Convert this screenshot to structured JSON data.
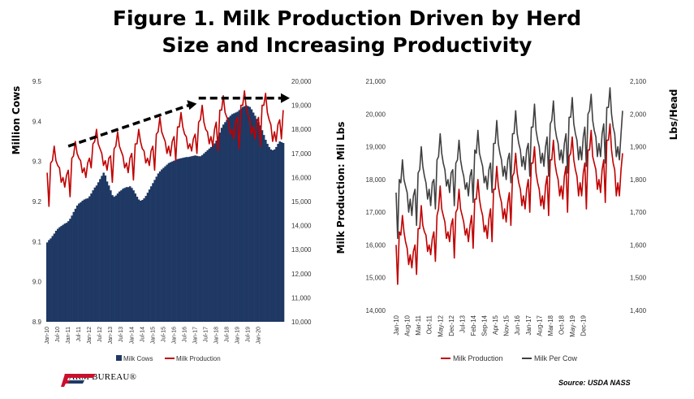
{
  "title_line1": "Figure 1. Milk Production Driven by Herd",
  "title_line2": "Size and Increasing Productivity",
  "source": "Source:  USDA NASS",
  "logo": {
    "text": "FARM BUREAU®"
  },
  "colors": {
    "navy": "#1f3864",
    "red": "#c00000",
    "gray": "#404040",
    "logo_red": "#c8102e"
  },
  "chart_data": [
    {
      "type": "bar",
      "subtype": "bar + line, dual axis",
      "y_left_label": "Million Cows",
      "y_left_lim": [
        8.9,
        9.5
      ],
      "y_left_ticks": [
        "9.5",
        "9.4",
        "9.3",
        "9.2",
        "9.1",
        "9.0",
        "8.9"
      ],
      "y_right_lim": [
        10000,
        20000
      ],
      "y_right_ticks": [
        "20,000",
        "19,000",
        "18,000",
        "17,000",
        "16,000",
        "15,000",
        "14,000",
        "13,000",
        "12,000",
        "11,000",
        "10,000"
      ],
      "x_ticks": [
        "Jan-10",
        "Jul-10",
        "Jan-11",
        "Jul-11",
        "Jan-12",
        "Jul-12",
        "Jan-13",
        "Jul-13",
        "Jan-14",
        "Jul-14",
        "Jan-15",
        "Jul-15",
        "Jan-16",
        "Jul-16",
        "Jan-17",
        "Jul-17",
        "Jan-18",
        "Jul-18",
        "Jan-19",
        "Jul-19",
        "Jan-20"
      ],
      "legend": [
        "Milk Cows",
        "Milk Production"
      ],
      "legend_position": "bottom",
      "annotations": [
        "dashed trend arrow rising Jan-11 to Jan-17",
        "dashed flat arrow Jan-17 to Jan-20"
      ],
      "series": [
        {
          "name": "Milk Cows",
          "type": "bar",
          "axis": "left",
          "x_start": "Jan-10",
          "frequency": "monthly",
          "values": [
            9.098,
            9.104,
            9.108,
            9.114,
            9.12,
            9.127,
            9.132,
            9.136,
            9.139,
            9.142,
            9.145,
            9.147,
            9.151,
            9.157,
            9.165,
            9.174,
            9.182,
            9.19,
            9.195,
            9.198,
            9.202,
            9.205,
            9.207,
            9.208,
            9.213,
            9.22,
            9.228,
            9.235,
            9.24,
            9.248,
            9.256,
            9.264,
            9.272,
            9.265,
            9.25,
            9.24,
            9.228,
            9.216,
            9.212,
            9.215,
            9.22,
            9.225,
            9.228,
            9.232,
            9.234,
            9.236,
            9.236,
            9.238,
            9.234,
            9.228,
            9.22,
            9.212,
            9.205,
            9.202,
            9.204,
            9.208,
            9.214,
            9.222,
            9.23,
            9.238,
            9.246,
            9.254,
            9.262,
            9.27,
            9.275,
            9.28,
            9.284,
            9.288,
            9.292,
            9.296,
            9.298,
            9.3,
            9.302,
            9.304,
            9.306,
            9.307,
            9.308,
            9.309,
            9.31,
            9.311,
            9.311,
            9.312,
            9.313,
            9.314,
            9.315,
            9.314,
            9.313,
            9.313,
            9.316,
            9.32,
            9.324,
            9.328,
            9.332,
            9.336,
            9.34,
            9.345,
            9.352,
            9.362,
            9.372,
            9.384,
            9.392,
            9.398,
            9.404,
            9.41,
            9.414,
            9.418,
            9.42,
            9.422,
            9.424,
            9.428,
            9.432,
            9.436,
            9.438,
            9.44,
            9.438,
            9.436,
            9.43,
            9.422,
            9.414,
            9.406,
            9.398,
            9.39,
            9.378,
            9.366,
            9.354,
            9.344,
            9.336,
            9.33,
            9.328,
            9.33,
            9.336,
            9.344,
            9.35,
            9.348,
            9.346
          ]
        },
        {
          "name": "Milk Production",
          "type": "line",
          "axis": "right",
          "x_start": "Jan-10",
          "frequency": "monthly",
          "values": [
            16200,
            14800,
            16600,
            16700,
            17300,
            16700,
            16500,
            16400,
            15800,
            16000,
            15600,
            16100,
            16300,
            15200,
            16800,
            16900,
            17500,
            17000,
            16800,
            16700,
            16200,
            16400,
            16000,
            16600,
            16800,
            16400,
            17400,
            17500,
            18000,
            17400,
            17200,
            17000,
            16500,
            16700,
            16300,
            16800,
            16900,
            15800,
            17200,
            17300,
            17900,
            17300,
            17100,
            16900,
            16400,
            16600,
            16200,
            16800,
            17000,
            15900,
            17400,
            17400,
            18000,
            17500,
            17200,
            17100,
            16600,
            16800,
            16500,
            17100,
            17300,
            16300,
            17800,
            17900,
            18500,
            17900,
            17700,
            17500,
            17000,
            17300,
            16900,
            17500,
            17700,
            16700,
            18100,
            18100,
            18700,
            18100,
            17800,
            17700,
            17200,
            17400,
            17100,
            17600,
            17800,
            17000,
            18300,
            18400,
            19000,
            18300,
            18000,
            17900,
            17400,
            17700,
            17300,
            18000,
            18300,
            17100,
            18800,
            18800,
            19400,
            18700,
            18500,
            18300,
            17800,
            18000,
            17600,
            18300,
            18500,
            17200,
            19000,
            19000,
            19600,
            18900,
            18600,
            18400,
            17800,
            18100,
            17600,
            18300,
            18500,
            17300,
            19000,
            19000,
            19500,
            18700,
            18400,
            18200,
            17500,
            17900,
            17500,
            18200,
            18400,
            17600,
            18800
          ]
        }
      ]
    },
    {
      "type": "line",
      "y_left_label": "Milk Production: Mil Lbs",
      "y_right_label": "Lbs/Head",
      "y_left_lim": [
        14000,
        21000
      ],
      "y_left_ticks": [
        "21,000",
        "20,000",
        "19,000",
        "18,000",
        "17,000",
        "16,000",
        "15,000",
        "14,000"
      ],
      "y_right_lim": [
        1400,
        2100
      ],
      "y_right_ticks": [
        "2,100",
        "2,000",
        "1,900",
        "1,800",
        "1,700",
        "1,600",
        "1,500",
        "1,400"
      ],
      "x_ticks": [
        "Jan-10",
        "Aug-10",
        "Mar-11",
        "Oct-11",
        "May-12",
        "Dec-12",
        "Jul-13",
        "Feb-14",
        "Sep-14",
        "Apr-15",
        "Nov-15",
        "Jun-16",
        "Jan-17",
        "Aug-17",
        "Mar-18",
        "Oct-18",
        "May-19",
        "Dec-19"
      ],
      "legend": [
        "Milk Production",
        "Milk Per Cow"
      ],
      "legend_position": "bottom",
      "series": [
        {
          "name": "Milk Production",
          "axis": "left",
          "x_start": "Jan-10",
          "frequency": "monthly",
          "values": [
            16000,
            14800,
            16400,
            16300,
            16900,
            16400,
            16100,
            15900,
            15400,
            15700,
            15300,
            15800,
            16000,
            15100,
            16500,
            16500,
            17200,
            16600,
            16400,
            16300,
            15800,
            16000,
            15700,
            16200,
            16400,
            15500,
            16900,
            17100,
            17800,
            17100,
            16900,
            16700,
            16200,
            16400,
            16100,
            16600,
            16800,
            15600,
            17000,
            17100,
            17700,
            17100,
            16900,
            16700,
            16300,
            16500,
            16100,
            16600,
            16900,
            15900,
            17400,
            17400,
            18000,
            17400,
            17100,
            16900,
            16400,
            16600,
            16200,
            16800,
            17100,
            16100,
            17700,
            17700,
            18400,
            17800,
            17500,
            17300,
            16800,
            17100,
            16700,
            17300,
            17600,
            16600,
            18100,
            18200,
            18800,
            18200,
            17900,
            17700,
            17200,
            17500,
            17100,
            17700,
            18000,
            17000,
            18500,
            18500,
            19000,
            18200,
            17900,
            17700,
            17200,
            17500,
            17100,
            17800,
            18100,
            16900,
            18600,
            18600,
            19200,
            18500,
            18200,
            18000,
            17500,
            17800,
            17400,
            18100,
            18400,
            17000,
            18700,
            18800,
            19300,
            18600,
            18300,
            18100,
            17500,
            17900,
            17500,
            18200,
            18500,
            17100,
            18900,
            18900,
            19500,
            18700,
            18500,
            18300,
            17700,
            18000,
            17600,
            18300,
            18600,
            17300,
            19200,
            19200,
            19700,
            18900,
            18500,
            18300,
            17500,
            17900,
            17500,
            18300,
            18800
          ]
        },
        {
          "name": "Milk Per Cow",
          "axis": "right",
          "x_start": "Jan-10",
          "frequency": "monthly",
          "values": [
            1760,
            1620,
            1800,
            1790,
            1860,
            1800,
            1780,
            1760,
            1700,
            1740,
            1690,
            1750,
            1770,
            1660,
            1820,
            1830,
            1900,
            1840,
            1810,
            1790,
            1740,
            1770,
            1720,
            1790,
            1800,
            1710,
            1860,
            1870,
            1940,
            1880,
            1850,
            1830,
            1780,
            1800,
            1760,
            1820,
            1830,
            1720,
            1850,
            1860,
            1920,
            1860,
            1830,
            1810,
            1770,
            1790,
            1750,
            1810,
            1830,
            1730,
            1890,
            1880,
            1950,
            1880,
            1860,
            1840,
            1790,
            1810,
            1770,
            1830,
            1850,
            1760,
            1910,
            1910,
            1980,
            1910,
            1880,
            1860,
            1810,
            1840,
            1800,
            1860,
            1880,
            1790,
            1940,
            1940,
            2010,
            1940,
            1910,
            1890,
            1840,
            1870,
            1830,
            1890,
            1910,
            1810,
            1960,
            1960,
            2030,
            1950,
            1920,
            1900,
            1850,
            1880,
            1840,
            1900,
            1930,
            1810,
            1970,
            1980,
            2040,
            1960,
            1930,
            1910,
            1860,
            1890,
            1850,
            1910,
            1940,
            1820,
            1990,
            1990,
            2050,
            1970,
            1940,
            1920,
            1860,
            1900,
            1860,
            1930,
            1960,
            1840,
            2000,
            2010,
            2060,
            1980,
            1950,
            1930,
            1870,
            1910,
            1870,
            1940,
            1970,
            1850,
            2020,
            2020,
            2080,
            2000,
            1960,
            1940,
            1870,
            1900,
            1860,
            1940,
            2010
          ]
        }
      ]
    }
  ]
}
